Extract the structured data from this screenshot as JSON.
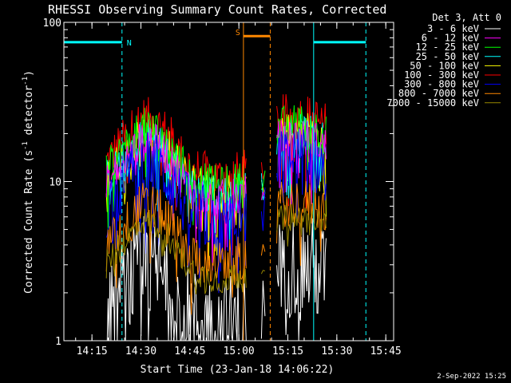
{
  "chart_data": {
    "type": "line",
    "title": "RHESSI Observing Summary Count Rates, Corrected",
    "xlabel": "Start Time (23-Jan-18 14:06:22)",
    "ylabel": "Corrected Count Rate (s⁻¹ detector⁻¹)",
    "ylabel_parts": {
      "main": "Corrected Count Rate (s",
      "sup1": "-1",
      "mid": " detector",
      "sup2": "-1",
      "end": ")"
    },
    "x_unit": "minutes since 14:06:22",
    "xlim": [
      0,
      101
    ],
    "ylim": [
      1,
      100
    ],
    "yscale": "log",
    "x_ticks": [
      {
        "label": "14:15",
        "value": 8.6
      },
      {
        "label": "14:30",
        "value": 23.6
      },
      {
        "label": "14:45",
        "value": 38.6
      },
      {
        "label": "15:00",
        "value": 53.6
      },
      {
        "label": "15:15",
        "value": 68.6
      },
      {
        "label": "15:30",
        "value": 83.6
      },
      {
        "label": "15:45",
        "value": 98.6
      }
    ],
    "y_ticks": [
      {
        "label": "1",
        "value": 1
      },
      {
        "label": "10",
        "value": 10
      },
      {
        "label": "100",
        "value": 100
      }
    ],
    "legend_title": "Det 3, Att 0",
    "legend_position": "top-right, outside plot",
    "series": [
      {
        "name": "3 - 6 keV",
        "color": "#ffffff",
        "level": 3.0,
        "width": 0.55,
        "spike": 0.45
      },
      {
        "name": "6 - 12 keV",
        "color": "#ff00ff",
        "level": 19,
        "width": 0.22,
        "spike": 0.25
      },
      {
        "name": "12 - 25 keV",
        "color": "#00ff00",
        "level": 23,
        "width": 0.22,
        "spike": 0.25
      },
      {
        "name": "25 - 50 keV",
        "color": "#00ffff",
        "level": 20,
        "width": 0.22,
        "spike": 0.25
      },
      {
        "name": "50 - 100 keV",
        "color": "#ffff00",
        "level": 21,
        "width": 0.22,
        "spike": 0.25
      },
      {
        "name": "100 - 300 keV",
        "color": "#ff0000",
        "level": 26,
        "width": 0.25,
        "spike": 0.32
      },
      {
        "name": "300 - 800 keV",
        "color": "#0000ff",
        "level": 14,
        "width": 0.35,
        "spike": 0.3
      },
      {
        "name": "800 - 7000 keV",
        "color": "#ff8800",
        "level": 7.5,
        "width": 0.25,
        "spike": 0.25
      },
      {
        "name": "7000 - 15000 keV",
        "color": "#998800",
        "level": 6,
        "width": 0.15,
        "spike": 0.1
      }
    ],
    "profile": {
      "x": [
        13,
        16,
        20,
        24,
        28,
        32,
        36,
        40,
        44,
        48,
        52,
        56,
        66,
        70,
        74,
        78,
        80.5
      ],
      "scale": [
        0.5,
        0.6,
        0.75,
        0.95,
        0.9,
        0.75,
        0.55,
        0.45,
        0.42,
        0.4,
        0.42,
        0.44,
        0.95,
        1.0,
        0.98,
        0.92,
        0.85
      ]
    },
    "data_segments": [
      [
        13,
        56
      ],
      [
        65.2,
        80.5
      ]
    ],
    "saa_data_x": [
      60.5,
      61.0,
      61.6
    ],
    "state_bars": [
      {
        "label": "N",
        "color": "#00ffff",
        "start": 0,
        "end": 17.8,
        "marker": 17.8,
        "level": 75
      },
      {
        "label": "S",
        "color": "#ff8800",
        "start": 55,
        "end": 63.2,
        "marker": 63.2,
        "level": 82
      },
      {
        "label": "",
        "color": "#00ffff",
        "start": 76.5,
        "end": 92.5,
        "marker": 92.5,
        "level": 75
      }
    ],
    "vertical_lines": [
      {
        "x": 0,
        "color": "#00ffff",
        "style": "solid"
      },
      {
        "x": 17.8,
        "color": "#00ffff",
        "style": "dashed"
      },
      {
        "x": 55,
        "color": "#ff8800",
        "style": "solid"
      },
      {
        "x": 63.2,
        "color": "#ff8800",
        "style": "dashed"
      },
      {
        "x": 76.5,
        "color": "#00ffff",
        "style": "solid"
      },
      {
        "x": 92.5,
        "color": "#00ffff",
        "style": "dashed"
      }
    ],
    "grid": false
  },
  "footer": {
    "timestamp": "2-Sep-2022 15:25"
  }
}
